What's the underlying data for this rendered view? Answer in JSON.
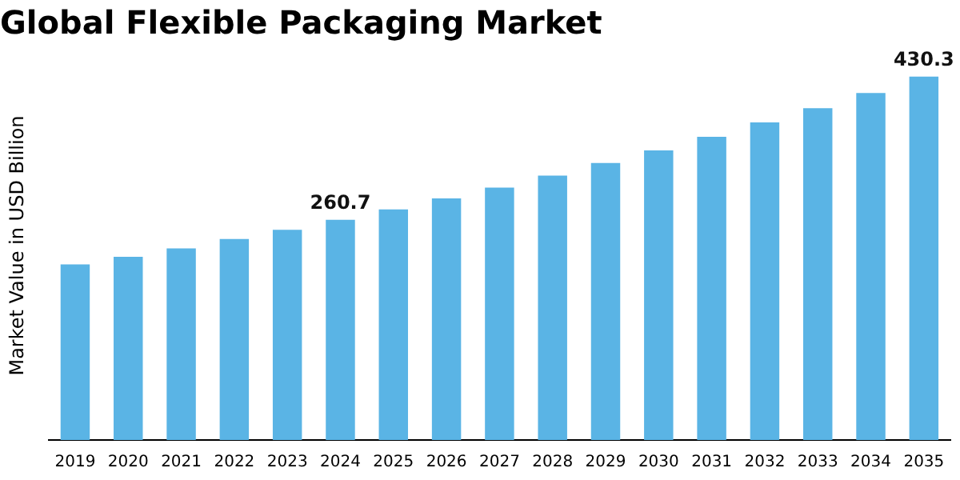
{
  "chart_data": {
    "type": "bar",
    "title": "Global Flexible Packaging Market",
    "ylabel": "Market Value in USD Billion",
    "categories": [
      "2019",
      "2020",
      "2021",
      "2022",
      "2023",
      "2024",
      "2025",
      "2026",
      "2027",
      "2028",
      "2029",
      "2030",
      "2031",
      "2032",
      "2033",
      "2034",
      "2035"
    ],
    "values": [
      208,
      217,
      227,
      238,
      249,
      260.7,
      273,
      286,
      299,
      313,
      328,
      343,
      359,
      376,
      393,
      411,
      430.3
    ],
    "value_labels": [
      null,
      null,
      null,
      null,
      null,
      "260.7",
      null,
      null,
      null,
      null,
      null,
      null,
      null,
      null,
      null,
      null,
      "430.3"
    ],
    "color": "#5ab4e5",
    "grid": false
  }
}
